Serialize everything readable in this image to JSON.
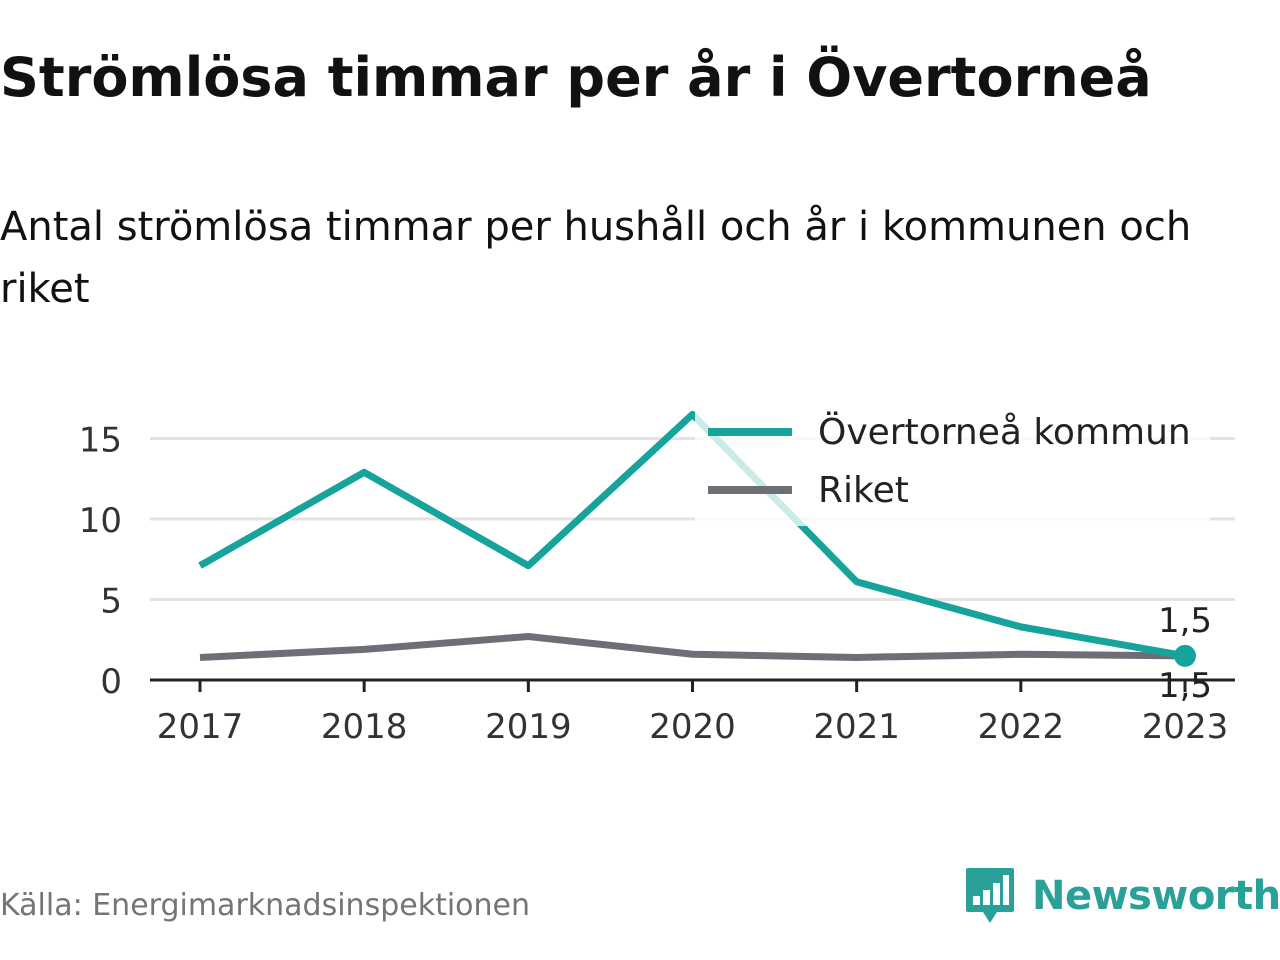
{
  "title": "Strömlösa timmar per år i Övertorneå",
  "subtitle": "Antal strömlösa timmar per hushåll och år i kommunen och riket",
  "footer": {
    "source": "Källa: Energimarknadsinspektionen",
    "brand": "Newsworthy",
    "brand_icon": "newsworthy-logo-icon"
  },
  "colors": {
    "accent": "#16a39b",
    "secondary": "#6e6e76",
    "grid": "#e3e3e3",
    "axis": "#222222",
    "brand": "#2aa198"
  },
  "chart_data": {
    "type": "line",
    "categories": [
      "2017",
      "2018",
      "2019",
      "2020",
      "2021",
      "2022",
      "2023"
    ],
    "series": [
      {
        "name": "Övertorneå kommun",
        "values": [
          7.1,
          12.9,
          7.1,
          16.5,
          6.1,
          3.3,
          1.5
        ]
      },
      {
        "name": "Riket",
        "values": [
          1.4,
          1.9,
          2.7,
          1.6,
          1.4,
          1.6,
          1.5
        ]
      }
    ],
    "yticks": [
      0,
      5,
      10,
      15
    ],
    "ylim": [
      0,
      17
    ],
    "grid": true,
    "legend": "top-right",
    "end_labels": [
      "1,5",
      "1,5"
    ],
    "title": "",
    "xlabel": "",
    "ylabel": ""
  }
}
